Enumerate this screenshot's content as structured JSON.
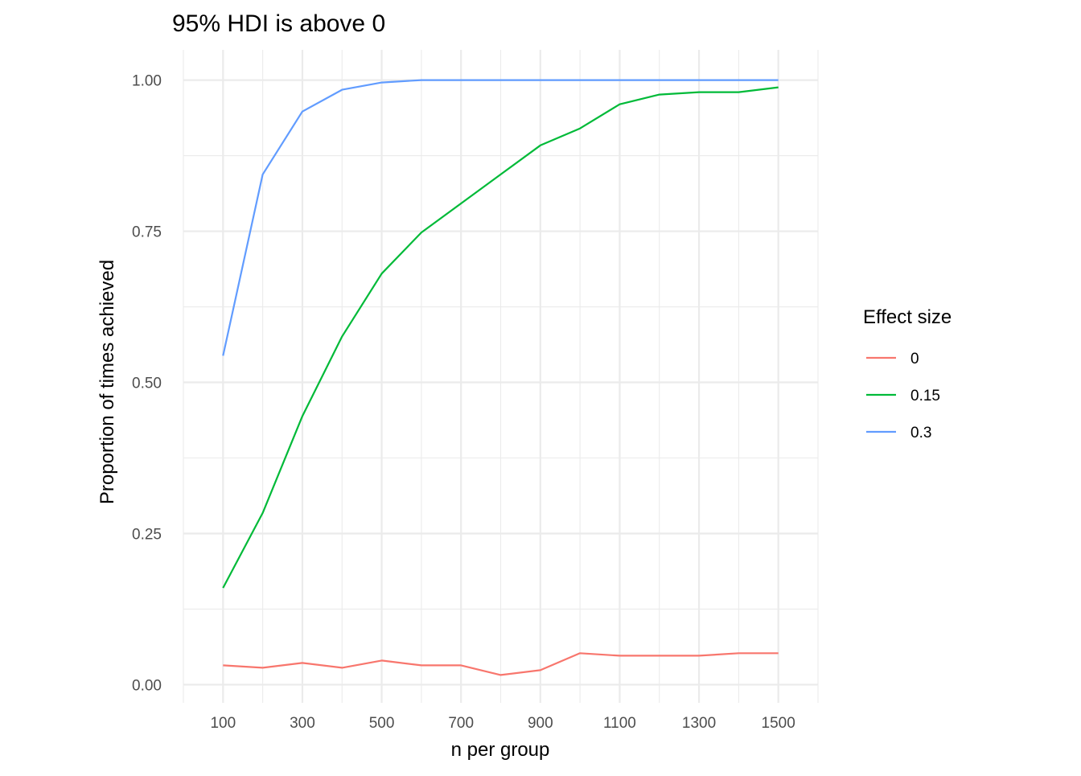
{
  "chart_data": {
    "type": "line",
    "title": "95% HDI is above 0",
    "xlabel": "n per group",
    "ylabel": "Proportion of times achieved",
    "x": [
      100,
      200,
      300,
      400,
      500,
      600,
      700,
      800,
      900,
      1000,
      1100,
      1200,
      1300,
      1400,
      1500
    ],
    "xlim": [
      0,
      1600
    ],
    "ylim": [
      -0.03,
      1.05
    ],
    "x_ticks": [
      100,
      300,
      500,
      700,
      900,
      1100,
      1300,
      1500
    ],
    "x_tick_labels": [
      "100",
      "300",
      "500",
      "700",
      "900",
      "1100",
      "1300",
      "1500"
    ],
    "y_ticks": [
      0,
      0.25,
      0.5,
      0.75,
      1.0
    ],
    "y_tick_labels": [
      "0.00",
      "0.25",
      "0.50",
      "0.75",
      "1.00"
    ],
    "grid": true,
    "legend": {
      "title": "Effect size",
      "position": "right"
    },
    "series": [
      {
        "name": "0",
        "color": "#F8766D",
        "values": [
          0.032,
          0.028,
          0.036,
          0.028,
          0.04,
          0.032,
          0.032,
          0.016,
          0.024,
          0.052,
          0.048,
          0.048,
          0.048,
          0.052,
          0.052
        ]
      },
      {
        "name": "0.15",
        "color": "#00BA38",
        "values": [
          0.16,
          0.284,
          0.444,
          0.576,
          0.68,
          0.748,
          0.796,
          0.844,
          0.892,
          0.92,
          0.96,
          0.976,
          0.98,
          0.98,
          0.988
        ]
      },
      {
        "name": "0.3",
        "color": "#619CFF",
        "values": [
          0.544,
          0.844,
          0.948,
          0.984,
          0.996,
          1.0,
          1.0,
          1.0,
          1.0,
          1.0,
          1.0,
          1.0,
          1.0,
          1.0,
          1.0
        ]
      }
    ]
  }
}
